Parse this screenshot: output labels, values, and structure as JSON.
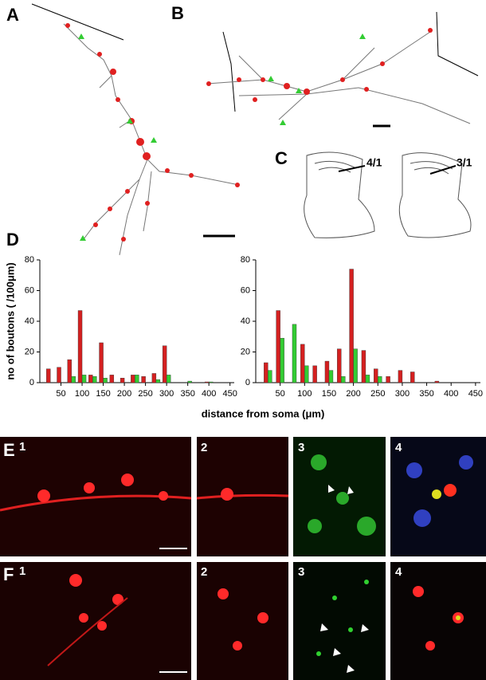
{
  "labels": {
    "a": "A",
    "b": "B",
    "c": "C",
    "d": "D",
    "e": "E",
    "f": "F"
  },
  "panel_c": {
    "left": "4/1",
    "right": "3/1"
  },
  "panel_e": [
    "1",
    "2",
    "3",
    "4"
  ],
  "panel_f": [
    "1",
    "2",
    "3",
    "4"
  ],
  "chart_data": [
    {
      "type": "bar",
      "ylabel": "no of boutons ( /100μm)",
      "xlabel": "distance from soma (μm)",
      "x": [
        25,
        50,
        75,
        100,
        125,
        150,
        175,
        200,
        225,
        250,
        275,
        300,
        325,
        350,
        375,
        400,
        425,
        450
      ],
      "series": [
        {
          "color": "#d42020",
          "values": [
            9,
            10,
            15,
            47,
            5,
            26,
            5,
            3,
            5,
            4,
            6,
            24,
            0,
            0,
            0,
            0.5,
            0,
            0
          ]
        },
        {
          "color": "#33cc33",
          "values": [
            0,
            0,
            4,
            5,
            4,
            3,
            0,
            0,
            5,
            0,
            2,
            5,
            0,
            1,
            0,
            0.5,
            0,
            0
          ]
        }
      ],
      "xlim": [
        0,
        460
      ],
      "xticks": [
        50,
        100,
        150,
        200,
        250,
        300,
        350,
        400,
        450
      ],
      "ylim": [
        0,
        80
      ],
      "yticks": [
        0,
        20,
        40,
        60,
        80
      ]
    },
    {
      "type": "bar",
      "x": [
        25,
        50,
        75,
        100,
        125,
        150,
        175,
        200,
        225,
        250,
        275,
        300,
        325,
        350,
        375,
        400,
        425,
        450
      ],
      "series": [
        {
          "color": "#d42020",
          "values": [
            13,
            47,
            0,
            25,
            11,
            14,
            22,
            74,
            21,
            9,
            4,
            8,
            7,
            0,
            1,
            0,
            0,
            0
          ]
        },
        {
          "color": "#33cc33",
          "values": [
            8,
            29,
            38,
            11,
            0,
            8,
            4,
            22,
            5,
            4,
            0,
            0,
            0,
            0,
            0,
            0,
            0,
            0
          ]
        }
      ],
      "xlim": [
        0,
        460
      ],
      "xticks": [
        50,
        100,
        150,
        200,
        250,
        300,
        350,
        400,
        450
      ],
      "ylim": [
        0,
        80
      ],
      "yticks": [
        0,
        20,
        40,
        60,
        80
      ]
    }
  ]
}
